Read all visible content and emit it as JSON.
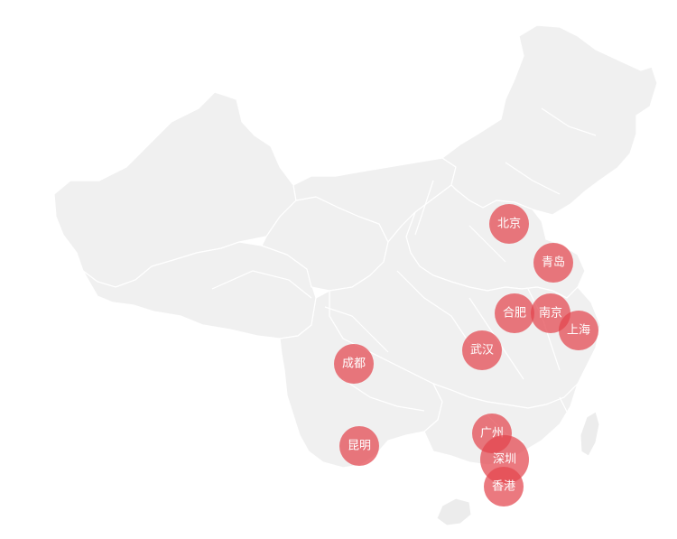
{
  "map": {
    "base_color": "#f0f0f0",
    "border_color": "#ffffff",
    "marker_color": "#e3454d"
  },
  "markers": [
    {
      "id": "beijing",
      "label": "北京",
      "size": "medium"
    },
    {
      "id": "qingdao",
      "label": "青岛",
      "size": "medium"
    },
    {
      "id": "hefei",
      "label": "合肥",
      "size": "medium"
    },
    {
      "id": "nanjing",
      "label": "南京",
      "size": "medium"
    },
    {
      "id": "shanghai",
      "label": "上海",
      "size": "medium"
    },
    {
      "id": "wuhan",
      "label": "武汉",
      "size": "medium"
    },
    {
      "id": "chengdu",
      "label": "成都",
      "size": "medium"
    },
    {
      "id": "kunming",
      "label": "昆明",
      "size": "medium"
    },
    {
      "id": "guangzhou",
      "label": "广州",
      "size": "medium"
    },
    {
      "id": "shenzhen",
      "label": "深圳",
      "size": "large"
    },
    {
      "id": "hongkong",
      "label": "香港",
      "size": "medium"
    }
  ]
}
